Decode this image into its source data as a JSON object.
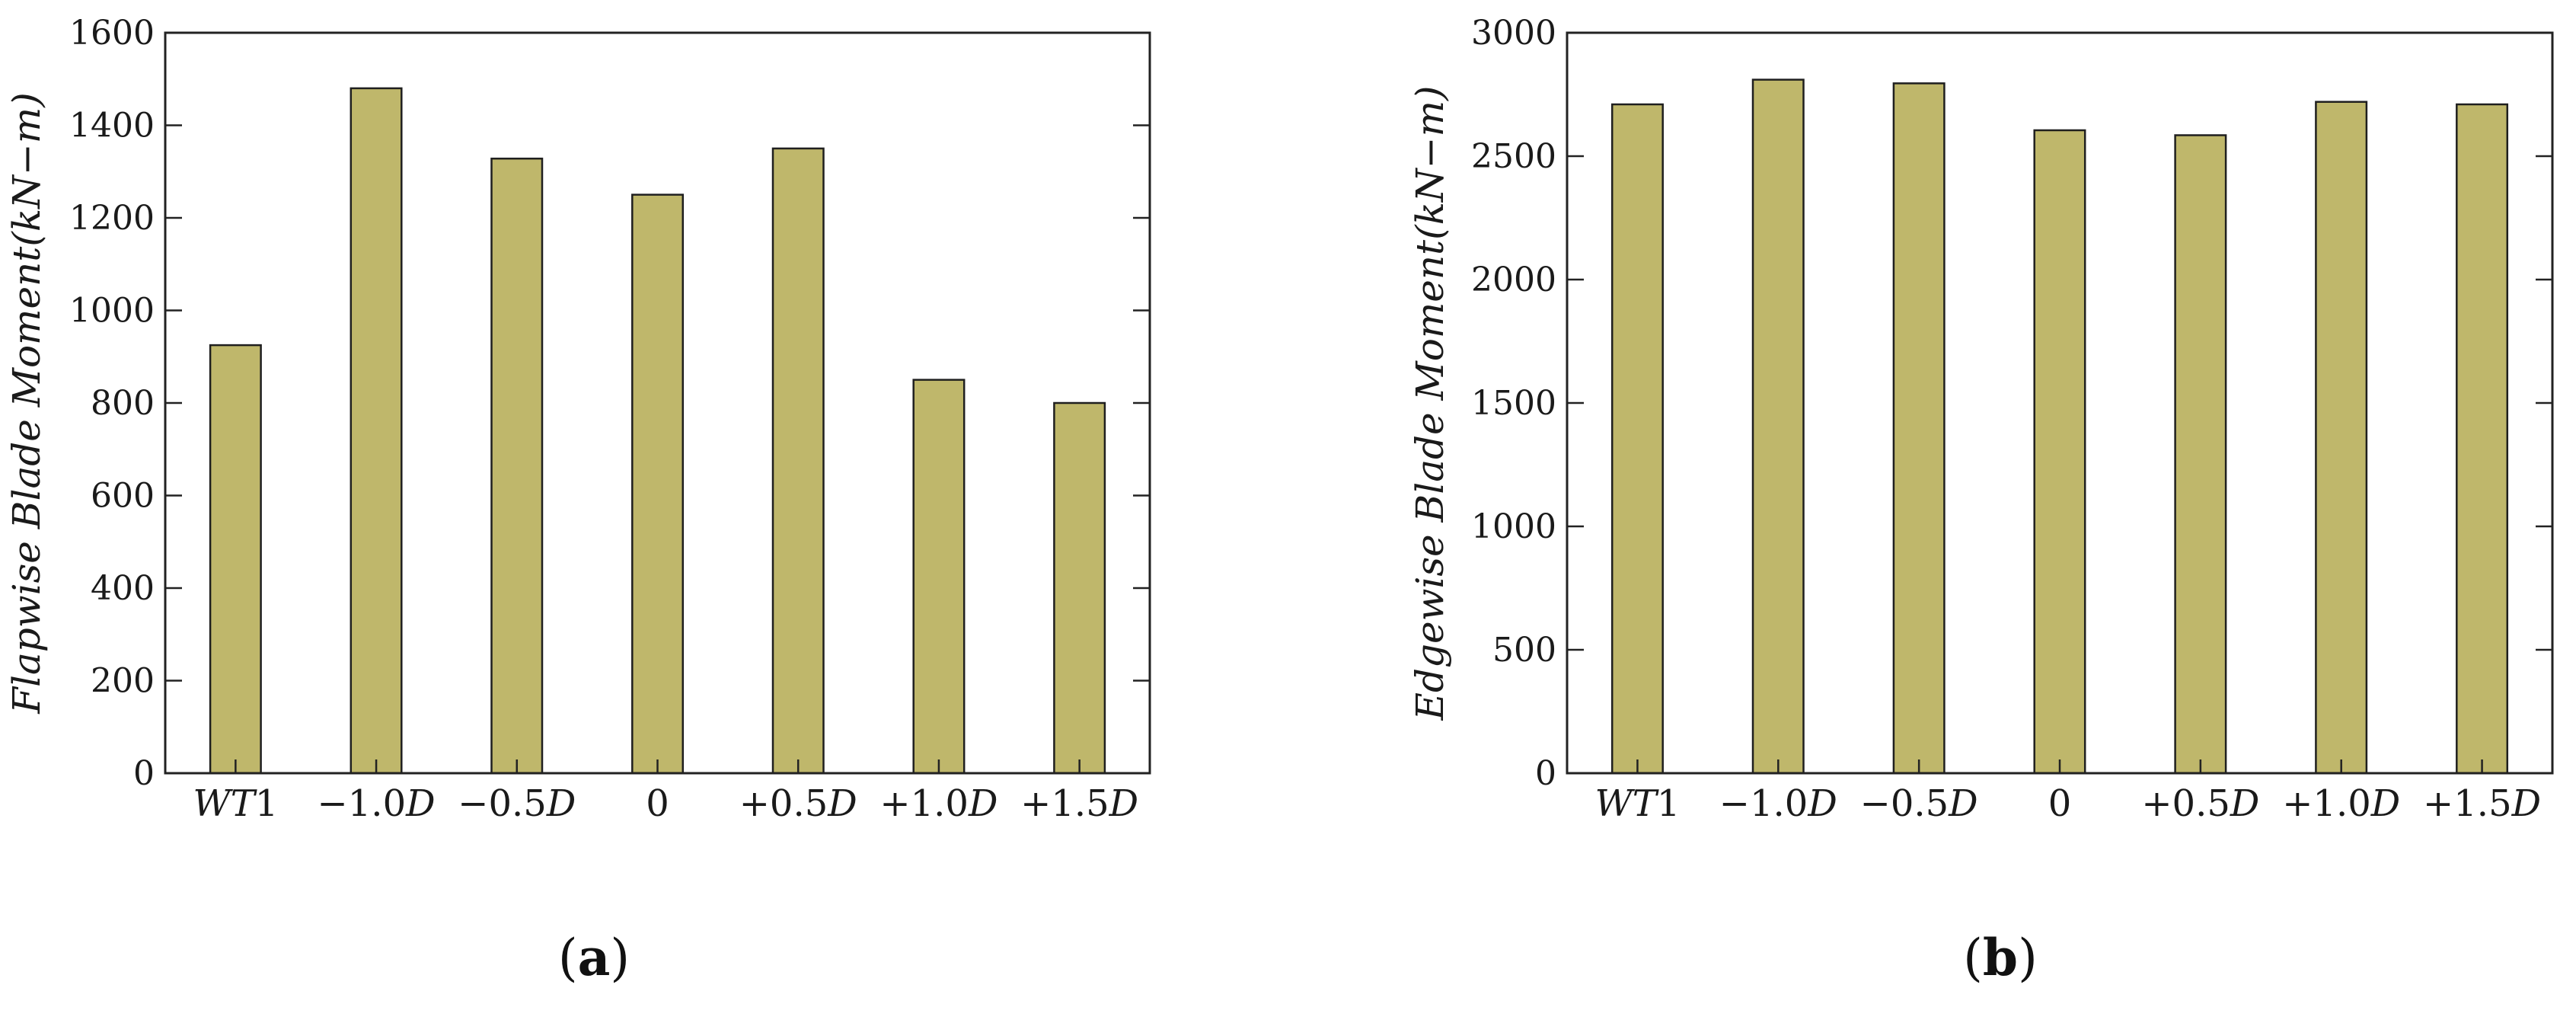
{
  "chart_data": [
    {
      "type": "bar",
      "panel_label": "a",
      "categories": [
        "WT1",
        "−1.0D",
        "−0.5D",
        "0",
        "+0.5D",
        "+1.0D",
        "+1.5D"
      ],
      "values": [
        925,
        1480,
        1328,
        1250,
        1350,
        850,
        800
      ],
      "ylabel": "Flapwise Blade Moment(kN−m)",
      "ylim": [
        0,
        1600
      ],
      "yticks": [
        0,
        200,
        400,
        600,
        800,
        1000,
        1200,
        1400,
        1600
      ],
      "bar_color": "#bfb76b",
      "grid": false
    },
    {
      "type": "bar",
      "panel_label": "b",
      "categories": [
        "WT1",
        "−1.0D",
        "−0.5D",
        "0",
        "+0.5D",
        "+1.0D",
        "+1.5D"
      ],
      "values": [
        2710,
        2810,
        2795,
        2605,
        2585,
        2720,
        2710
      ],
      "ylabel": "Edgewise Blade Moment(kN−m)",
      "ylim": [
        0,
        3000
      ],
      "yticks": [
        0,
        500,
        1000,
        1500,
        2000,
        2500,
        3000
      ],
      "bar_color": "#bfb76b",
      "grid": false
    }
  ]
}
